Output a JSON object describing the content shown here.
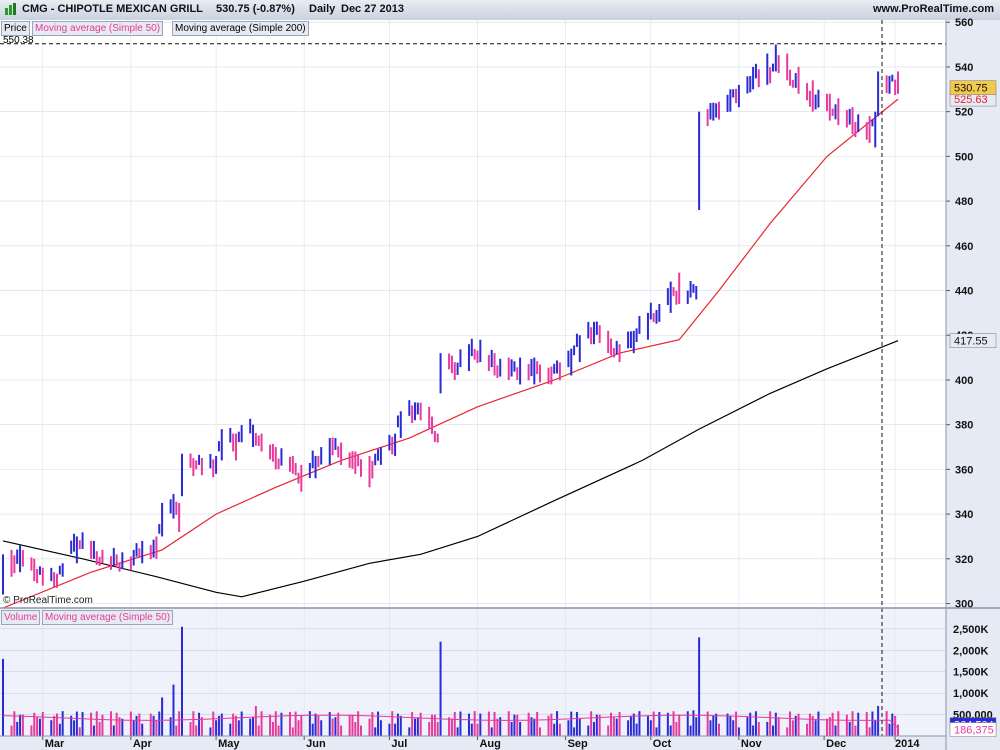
{
  "header": {
    "title": "CMG - CHIPOTLE MEXICAN GRILL",
    "last_change": "530.75 (-0.87%)",
    "period": "Daily",
    "date": "Dec 27 2013",
    "site": "www.ProRealTime.com"
  },
  "price_panel": {
    "legend": [
      "Price",
      "Moving average (Simple 50)",
      "Moving average (Simple 200)"
    ],
    "high_line_label": "550.38",
    "copyright": "© ProRealTime.com",
    "last_price_tag": "530.75",
    "ma50_tag": "525.63",
    "ma200_tag": "417.55"
  },
  "volume_panel": {
    "legend": [
      "Volume",
      "Moving average (Simple 50)"
    ],
    "volume_tag": "264,504",
    "ma_tag": "186,375"
  },
  "colors": {
    "up_bar": "#2b2bd6",
    "down_bar": "#e8399c",
    "ma50": "#e8242c",
    "ma200": "#000000",
    "volume_ma": "#e8399c",
    "panel_bg": "#f0f2fb",
    "axis_bg": "#e6eaf4"
  },
  "chart_data": [
    {
      "type": "ohlc",
      "title": "CMG - CHIPOTLE MEXICAN GRILL",
      "x_axis": {
        "type": "date",
        "range": [
          "2013-02-15",
          "2013-12-27"
        ],
        "tick_labels": [
          "Mar",
          "Apr",
          "May",
          "Jun",
          "Jul",
          "Aug",
          "Sep",
          "Oct",
          "Nov",
          "Dec",
          "2014"
        ]
      },
      "y_axis": {
        "range": [
          298,
          561
        ],
        "tick_labels": [
          300,
          320,
          340,
          360,
          380,
          400,
          420,
          440,
          460,
          480,
          500,
          520,
          540,
          560
        ]
      },
      "annotations": {
        "horizontal_dashed": 550.38,
        "vertical_dashed_date": "2013-12-27"
      },
      "ohlc_anchors": [
        [
          "2013-02-15",
          322,
          304,
          320
        ],
        [
          "2013-02-18",
          324,
          312,
          318
        ],
        [
          "2013-02-21",
          326,
          314,
          322
        ],
        [
          "2013-02-26",
          320,
          310,
          314
        ],
        [
          "2013-03-01",
          316,
          308,
          312
        ],
        [
          "2013-03-05",
          314,
          307,
          310
        ],
        [
          "2013-03-08",
          318,
          312,
          316
        ],
        [
          "2013-03-13",
          330,
          318,
          328
        ],
        [
          "2013-03-18",
          328,
          320,
          322
        ],
        [
          "2013-03-22",
          324,
          318,
          320
        ],
        [
          "2013-03-27",
          322,
          316,
          318
        ],
        [
          "2013-04-02",
          324,
          317,
          320
        ],
        [
          "2013-04-05",
          328,
          318,
          326
        ],
        [
          "2013-04-10",
          330,
          320,
          324
        ],
        [
          "2013-04-12",
          345,
          330,
          343
        ],
        [
          "2013-04-16",
          349,
          338,
          345
        ],
        [
          "2013-04-18",
          345,
          332,
          336
        ],
        [
          "2013-04-19",
          367,
          348,
          366
        ],
        [
          "2013-04-24",
          364,
          360,
          362
        ],
        [
          "2013-05-01",
          366,
          358,
          362
        ],
        [
          "2013-05-03",
          378,
          364,
          374
        ],
        [
          "2013-05-08",
          376,
          364,
          372
        ],
        [
          "2013-05-14",
          380,
          370,
          378
        ],
        [
          "2013-05-17",
          376,
          368,
          370
        ],
        [
          "2013-05-22",
          370,
          360,
          364
        ],
        [
          "2013-05-28",
          366,
          358,
          362
        ],
        [
          "2013-05-31",
          362,
          350,
          356
        ],
        [
          "2013-06-05",
          366,
          356,
          364
        ],
        [
          "2013-06-10",
          374,
          362,
          370
        ],
        [
          "2013-06-14",
          372,
          362,
          368
        ],
        [
          "2013-06-19",
          368,
          358,
          364
        ],
        [
          "2013-06-24",
          366,
          352,
          360
        ],
        [
          "2013-06-28",
          370,
          362,
          366
        ],
        [
          "2013-07-03",
          376,
          366,
          374
        ],
        [
          "2013-07-05",
          386,
          374,
          384
        ],
        [
          "2013-07-10",
          390,
          382,
          386
        ],
        [
          "2013-07-15",
          388,
          378,
          382
        ],
        [
          "2013-07-18",
          376,
          372,
          374
        ],
        [
          "2013-07-19",
          412,
          394,
          410
        ],
        [
          "2013-07-24",
          408,
          400,
          404
        ],
        [
          "2013-07-29",
          416,
          404,
          412
        ],
        [
          "2013-08-02",
          418,
          408,
          412
        ],
        [
          "2013-08-07",
          412,
          402,
          406
        ],
        [
          "2013-08-12",
          410,
          400,
          404
        ],
        [
          "2013-08-16",
          410,
          398,
          404
        ],
        [
          "2013-08-21",
          410,
          398,
          406
        ],
        [
          "2013-08-27",
          406,
          398,
          402
        ],
        [
          "2013-09-03",
          414,
          402,
          410
        ],
        [
          "2013-09-06",
          420,
          408,
          418
        ],
        [
          "2013-09-11",
          426,
          416,
          422
        ],
        [
          "2013-09-16",
          422,
          412,
          416
        ],
        [
          "2013-09-20",
          416,
          408,
          412
        ],
        [
          "2013-09-25",
          422,
          412,
          418
        ],
        [
          "2013-09-30",
          430,
          418,
          428
        ],
        [
          "2013-10-04",
          434,
          426,
          430
        ],
        [
          "2013-10-08",
          444,
          430,
          440
        ],
        [
          "2013-10-11",
          448,
          434,
          438
        ],
        [
          "2013-10-14",
          440,
          434,
          438
        ],
        [
          "2013-10-17",
          442,
          436,
          440
        ],
        [
          "2013-10-18",
          520,
          476,
          518
        ],
        [
          "2013-10-23",
          524,
          516,
          520
        ],
        [
          "2013-10-29",
          530,
          520,
          526
        ],
        [
          "2013-11-01",
          532,
          522,
          526
        ],
        [
          "2013-11-06",
          540,
          530,
          536
        ],
        [
          "2013-11-11",
          546,
          532,
          536
        ],
        [
          "2013-11-14",
          550,
          538,
          542
        ],
        [
          "2013-11-18",
          546,
          534,
          538
        ],
        [
          "2013-11-22",
          540,
          528,
          530
        ],
        [
          "2013-11-27",
          534,
          520,
          524
        ],
        [
          "2013-12-03",
          528,
          516,
          522
        ],
        [
          "2013-12-06",
          526,
          514,
          520
        ],
        [
          "2013-12-11",
          522,
          510,
          514
        ],
        [
          "2013-12-17",
          518,
          506,
          512
        ],
        [
          "2013-12-19",
          520,
          504,
          516
        ],
        [
          "2013-12-20",
          538,
          518,
          534
        ],
        [
          "2013-12-24",
          536,
          528,
          534
        ],
        [
          "2013-12-27",
          538,
          528,
          530.75
        ]
      ],
      "series": [
        {
          "name": "Moving average (Simple 50)",
          "points": [
            [
              "2013-02-15",
              298
            ],
            [
              "2013-03-18",
              314
            ],
            [
              "2013-04-12",
              324
            ],
            [
              "2013-05-01",
              340
            ],
            [
              "2013-05-22",
              352
            ],
            [
              "2013-06-14",
              364
            ],
            [
              "2013-07-08",
              374
            ],
            [
              "2013-08-01",
              388
            ],
            [
              "2013-08-28",
              400
            ],
            [
              "2013-09-20",
              412
            ],
            [
              "2013-10-11",
              418
            ],
            [
              "2013-10-25",
              440
            ],
            [
              "2013-11-12",
              470
            ],
            [
              "2013-12-02",
              500
            ],
            [
              "2013-12-27",
              525.63
            ]
          ]
        },
        {
          "name": "Moving average (Simple 200)",
          "points": [
            [
              "2013-02-15",
              328
            ],
            [
              "2013-03-15",
              320
            ],
            [
              "2013-04-10",
              312
            ],
            [
              "2013-05-01",
              305
            ],
            [
              "2013-05-10",
              303
            ],
            [
              "2013-06-01",
              310
            ],
            [
              "2013-06-24",
              318
            ],
            [
              "2013-07-12",
              322
            ],
            [
              "2013-08-01",
              330
            ],
            [
              "2013-08-28",
              346
            ],
            [
              "2013-09-28",
              364
            ],
            [
              "2013-10-18",
              378
            ],
            [
              "2013-11-12",
              394
            ],
            [
              "2013-12-02",
              405
            ],
            [
              "2013-12-27",
              417.55
            ]
          ]
        }
      ]
    },
    {
      "type": "bar",
      "name": "Volume",
      "y_axis": {
        "range": [
          0,
          2800000
        ],
        "tick_labels": [
          "500,000",
          "1,000K",
          "1,500K",
          "2,000K",
          "2,500K"
        ]
      },
      "spikes": [
        [
          "2013-02-15",
          1800000
        ],
        [
          "2013-04-19",
          2550000
        ],
        [
          "2013-04-12",
          900000
        ],
        [
          "2013-04-16",
          1200000
        ],
        [
          "2013-05-15",
          700000
        ],
        [
          "2013-07-19",
          2200000
        ],
        [
          "2013-10-18",
          2300000
        ],
        [
          "2013-10-16",
          600000
        ],
        [
          "2013-12-20",
          700000
        ],
        [
          "2013-12-27",
          264504
        ]
      ],
      "typical_volume": 400000,
      "series": [
        {
          "name": "Moving average (Simple 50)",
          "approx_level": 500000,
          "last": 186375
        }
      ]
    }
  ]
}
